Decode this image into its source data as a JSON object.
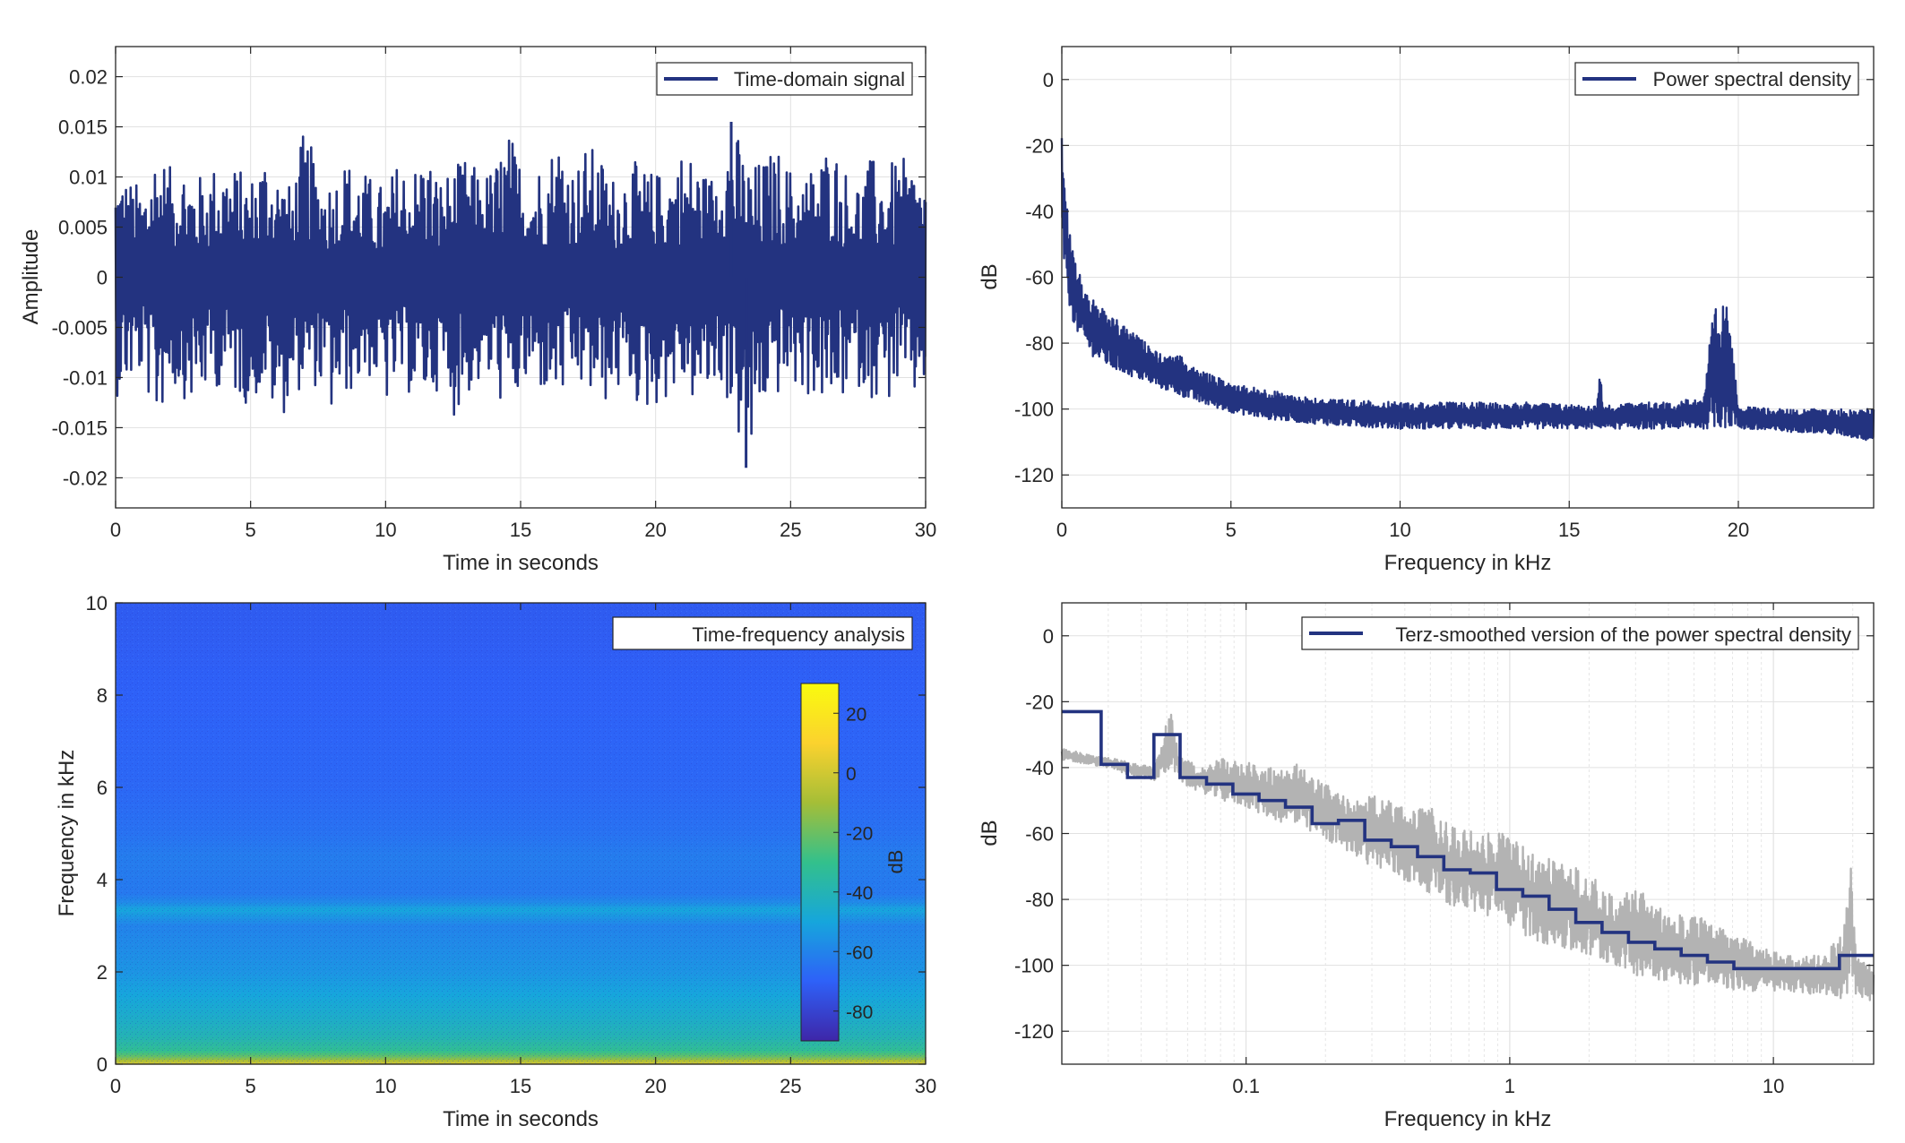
{
  "figure": {
    "colors": {
      "series": "#233380",
      "raw_psd": "#b3b3b3",
      "axis": "#262626",
      "grid": "#e1e1e1",
      "colormap": [
        "#3e26a8",
        "#2e61f8",
        "#16a6dc",
        "#33c08c",
        "#a5be37",
        "#fbd22e",
        "#f9fb0e"
      ]
    }
  },
  "chart_data": [
    {
      "id": "time",
      "type": "line",
      "legend": [
        "Time-domain signal"
      ],
      "legend_position": "top-right",
      "xlabel": "Time in seconds",
      "ylabel": "Amplitude",
      "xlim": [
        0,
        30
      ],
      "ylim": [
        -0.023,
        0.023
      ],
      "xticks": [
        0,
        5,
        10,
        15,
        20,
        25,
        30
      ],
      "xtick_labels": [
        "0",
        "5",
        "10",
        "15",
        "20",
        "25",
        "30"
      ],
      "yticks": [
        0.02,
        0.015,
        0.01,
        0.005,
        0,
        -0.005,
        -0.01,
        -0.015,
        -0.02
      ],
      "ytick_labels": [
        "0.02",
        "0.015",
        "0.01",
        "0.005",
        "0",
        "-0.005",
        "-0.01",
        "-0.015",
        "-0.02"
      ],
      "grid": true,
      "series": [
        {
          "name": "Time-domain signal",
          "x": [
            0.0,
            0.5,
            1.0,
            1.5,
            2.0,
            2.5,
            3.0,
            3.5,
            4.0,
            4.5,
            5.0,
            5.5,
            6.0,
            6.5,
            7.0,
            7.5,
            8.0,
            8.5,
            9.0,
            9.5,
            10.0,
            10.5,
            11.0,
            11.5,
            12.0,
            12.5,
            13.0,
            13.5,
            14.0,
            14.5,
            15.0,
            15.5,
            16.0,
            16.5,
            17.0,
            17.5,
            18.0,
            18.5,
            19.0,
            19.5,
            20.0,
            20.5,
            21.0,
            21.5,
            22.0,
            22.5,
            23.0,
            23.5,
            24.0,
            24.5,
            25.0,
            25.5,
            26.0,
            26.5,
            27.0,
            27.5,
            28.0,
            28.5,
            29.0,
            29.5,
            30.0
          ],
          "max": [
            0.011,
            0.01,
            0.009,
            0.0135,
            0.011,
            0.012,
            0.01,
            0.011,
            0.012,
            0.011,
            0.01,
            0.013,
            0.011,
            0.009,
            0.015,
            0.011,
            0.01,
            0.012,
            0.011,
            0.01,
            0.009,
            0.012,
            0.011,
            0.013,
            0.01,
            0.011,
            0.012,
            0.0105,
            0.011,
            0.015,
            0.012,
            0.011,
            0.0125,
            0.015,
            0.011,
            0.0135,
            0.012,
            0.01,
            0.012,
            0.011,
            0.0105,
            0.011,
            0.013,
            0.012,
            0.01,
            0.015,
            0.0145,
            0.011,
            0.012,
            0.013,
            0.011,
            0.0105,
            0.012,
            0.014,
            0.011,
            0.01,
            0.012,
            0.011,
            0.012,
            0.0115,
            0.01
          ],
          "min": [
            -0.012,
            -0.011,
            -0.01,
            -0.015,
            -0.011,
            -0.012,
            -0.013,
            -0.011,
            -0.011,
            -0.012,
            -0.013,
            -0.011,
            -0.015,
            -0.012,
            -0.011,
            -0.011,
            -0.014,
            -0.012,
            -0.011,
            -0.01,
            -0.013,
            -0.011,
            -0.012,
            -0.0125,
            -0.011,
            -0.014,
            -0.012,
            -0.011,
            -0.011,
            -0.014,
            -0.012,
            -0.011,
            -0.012,
            -0.0125,
            -0.011,
            -0.012,
            -0.013,
            -0.012,
            -0.011,
            -0.014,
            -0.013,
            -0.012,
            -0.011,
            -0.013,
            -0.012,
            -0.011,
            -0.016,
            -0.019,
            -0.013,
            -0.012,
            -0.011,
            -0.012,
            -0.012,
            -0.014,
            -0.012,
            -0.011,
            -0.012,
            -0.013,
            -0.011,
            -0.013,
            -0.0105
          ],
          "max_abs": 0.0155,
          "min_abs": -0.019
        }
      ]
    },
    {
      "id": "psd",
      "type": "line",
      "legend": [
        "Power spectral density"
      ],
      "legend_position": "top-right",
      "xlabel": "Frequency in kHz",
      "ylabel": "dB",
      "xlim": [
        0,
        24
      ],
      "ylim": [
        -130,
        10
      ],
      "xticks": [
        0,
        5,
        10,
        15,
        20
      ],
      "xtick_labels": [
        "0",
        "5",
        "10",
        "15",
        "20"
      ],
      "yticks": [
        0,
        -20,
        -40,
        -60,
        -80,
        -100,
        -120
      ],
      "ytick_labels": [
        "0",
        "-20",
        "-40",
        "-60",
        "-80",
        "-100",
        "-120"
      ],
      "grid": true,
      "series": [
        {
          "name": "Power spectral density",
          "x": [
            0.0,
            0.05,
            0.1,
            0.2,
            0.35,
            0.5,
            0.75,
            1.0,
            1.5,
            2.0,
            2.5,
            3.0,
            3.5,
            4.0,
            5.0,
            6.0,
            7.0,
            8.0,
            10.0,
            12.0,
            14.0,
            15.8,
            15.9,
            16.0,
            16.1,
            17.0,
            18.0,
            19.0,
            19.2,
            19.35,
            19.5,
            19.6,
            19.7,
            19.8,
            20.0,
            21.0,
            22.0,
            23.0,
            24.0
          ],
          "upper": [
            -14,
            -25,
            -35,
            -42,
            -52,
            -58,
            -64,
            -68,
            -72,
            -76,
            -80,
            -84,
            -84,
            -88,
            -92,
            -94,
            -96,
            -97,
            -98,
            -98,
            -98,
            -99,
            -86,
            -99,
            -99,
            -98,
            -98,
            -96,
            -75,
            -69,
            -74,
            -63,
            -72,
            -74,
            -99,
            -100,
            -100,
            -100,
            -100
          ],
          "lower": [
            -50,
            -55,
            -60,
            -68,
            -74,
            -78,
            -82,
            -85,
            -88,
            -90,
            -92,
            -94,
            -96,
            -98,
            -101,
            -103,
            -104,
            -105,
            -106,
            -106,
            -106,
            -106,
            -106,
            -106,
            -106,
            -106,
            -106,
            -106,
            -106,
            -106,
            -106,
            -106,
            -106,
            -106,
            -106,
            -107,
            -107,
            -108,
            -110
          ]
        }
      ]
    },
    {
      "id": "spectrogram",
      "type": "heatmap",
      "legend": [
        "Time-frequency analysis"
      ],
      "legend_position": "top-right",
      "xlabel": "Time in seconds",
      "ylabel": "Frequency in kHz",
      "xlim": [
        0,
        30
      ],
      "ylim": [
        0,
        10
      ],
      "xticks": [
        0,
        5,
        10,
        15,
        20,
        25,
        30
      ],
      "xtick_labels": [
        "0",
        "5",
        "10",
        "15",
        "20",
        "25",
        "30"
      ],
      "yticks": [
        10,
        8,
        6,
        4,
        2,
        0
      ],
      "ytick_labels": [
        "10",
        "8",
        "6",
        "4",
        "2",
        "0"
      ],
      "colorbar": {
        "label": "dB",
        "clim": [
          -90,
          30
        ],
        "ticks": [
          20,
          0,
          -20,
          -40,
          -60,
          -80
        ],
        "tick_labels": [
          "20",
          "0",
          "-20",
          "-40",
          "-60",
          "-80"
        ]
      },
      "level_profile": {
        "freq_khz": [
          0.0,
          0.15,
          0.3,
          0.6,
          1.0,
          1.5,
          2.0,
          3.0,
          3.35,
          3.5,
          3.7,
          4.5,
          5.0,
          6.0,
          8.0,
          10.0
        ],
        "db": [
          2,
          -20,
          -32,
          -40,
          -45,
          -50,
          -55,
          -60,
          -50,
          -58,
          -63,
          -62,
          -65,
          -68,
          -70,
          -72
        ]
      }
    },
    {
      "id": "terz",
      "type": "line",
      "legend": [
        "Terz-smoothed version of the power spectral density"
      ],
      "legend_position": "top-right",
      "xlabel": "Frequency in kHz",
      "ylabel": "dB",
      "xscale": "log",
      "xlim": [
        0.02,
        24
      ],
      "ylim": [
        -130,
        10
      ],
      "xticks": [
        0.1,
        1,
        10
      ],
      "xtick_labels": [
        "0.1",
        "1",
        "10"
      ],
      "yticks": [
        0,
        -20,
        -40,
        -60,
        -80,
        -100,
        -120
      ],
      "ytick_labels": [
        "0",
        "-20",
        "-40",
        "-60",
        "-80",
        "-100",
        "-120"
      ],
      "grid": true,
      "series": [
        {
          "name": "Terz-smoothed version of the power spectral density",
          "step_edges": [
            0.02,
            0.0282,
            0.0355,
            0.0447,
            0.0562,
            0.0708,
            0.0891,
            0.112,
            0.141,
            0.178,
            0.224,
            0.282,
            0.355,
            0.447,
            0.562,
            0.708,
            0.891,
            1.12,
            1.41,
            1.78,
            2.24,
            2.82,
            3.55,
            4.47,
            5.62,
            7.08,
            8.91,
            11.2,
            14.1,
            17.8,
            24
          ],
          "values": [
            -23,
            -39,
            -43,
            -30,
            -43,
            -45,
            -48,
            -50,
            -52,
            -57,
            -56,
            -62,
            -64,
            -67,
            -71,
            -72,
            -77,
            -79,
            -83,
            -87,
            -90,
            -93,
            -95,
            -97,
            -99,
            -101,
            -101,
            -101,
            -101,
            -97
          ]
        },
        {
          "name": "",
          "x": [
            0.02,
            0.025,
            0.03,
            0.035,
            0.04,
            0.045,
            0.05,
            0.052,
            0.055,
            0.06,
            0.07,
            0.08,
            0.1,
            0.12,
            0.15,
            0.2,
            0.25,
            0.3,
            0.4,
            0.5,
            0.6,
            0.8,
            1.0,
            1.2,
            1.5,
            2.0,
            2.5,
            3.0,
            4.0,
            5.0,
            6.0,
            8.0,
            10.0,
            12.0,
            14.0,
            16.0,
            18.0,
            19.0,
            19.6,
            20.0,
            21.0,
            22.0,
            24.0
          ],
          "upper": [
            -34,
            -36,
            -37,
            -38,
            -39,
            -40,
            -25,
            -19,
            -35,
            -38,
            -40,
            -37,
            -38,
            -40,
            -38,
            -45,
            -50,
            -48,
            -52,
            -52,
            -58,
            -60,
            -60,
            -66,
            -68,
            -72,
            -80,
            -76,
            -85,
            -84,
            -88,
            -92,
            -96,
            -97,
            -97,
            -96,
            -90,
            -82,
            -62,
            -85,
            -98,
            -99,
            -100
          ],
          "lower": [
            -38,
            -39,
            -40,
            -42,
            -43,
            -44,
            -42,
            -40,
            -43,
            -46,
            -48,
            -50,
            -52,
            -55,
            -58,
            -62,
            -66,
            -70,
            -75,
            -78,
            -82,
            -85,
            -88,
            -92,
            -95,
            -98,
            -100,
            -103,
            -105,
            -106,
            -107,
            -108,
            -108,
            -108,
            -109,
            -109,
            -110,
            -109,
            -100,
            -108,
            -110,
            -110,
            -112
          ]
        }
      ]
    }
  ]
}
